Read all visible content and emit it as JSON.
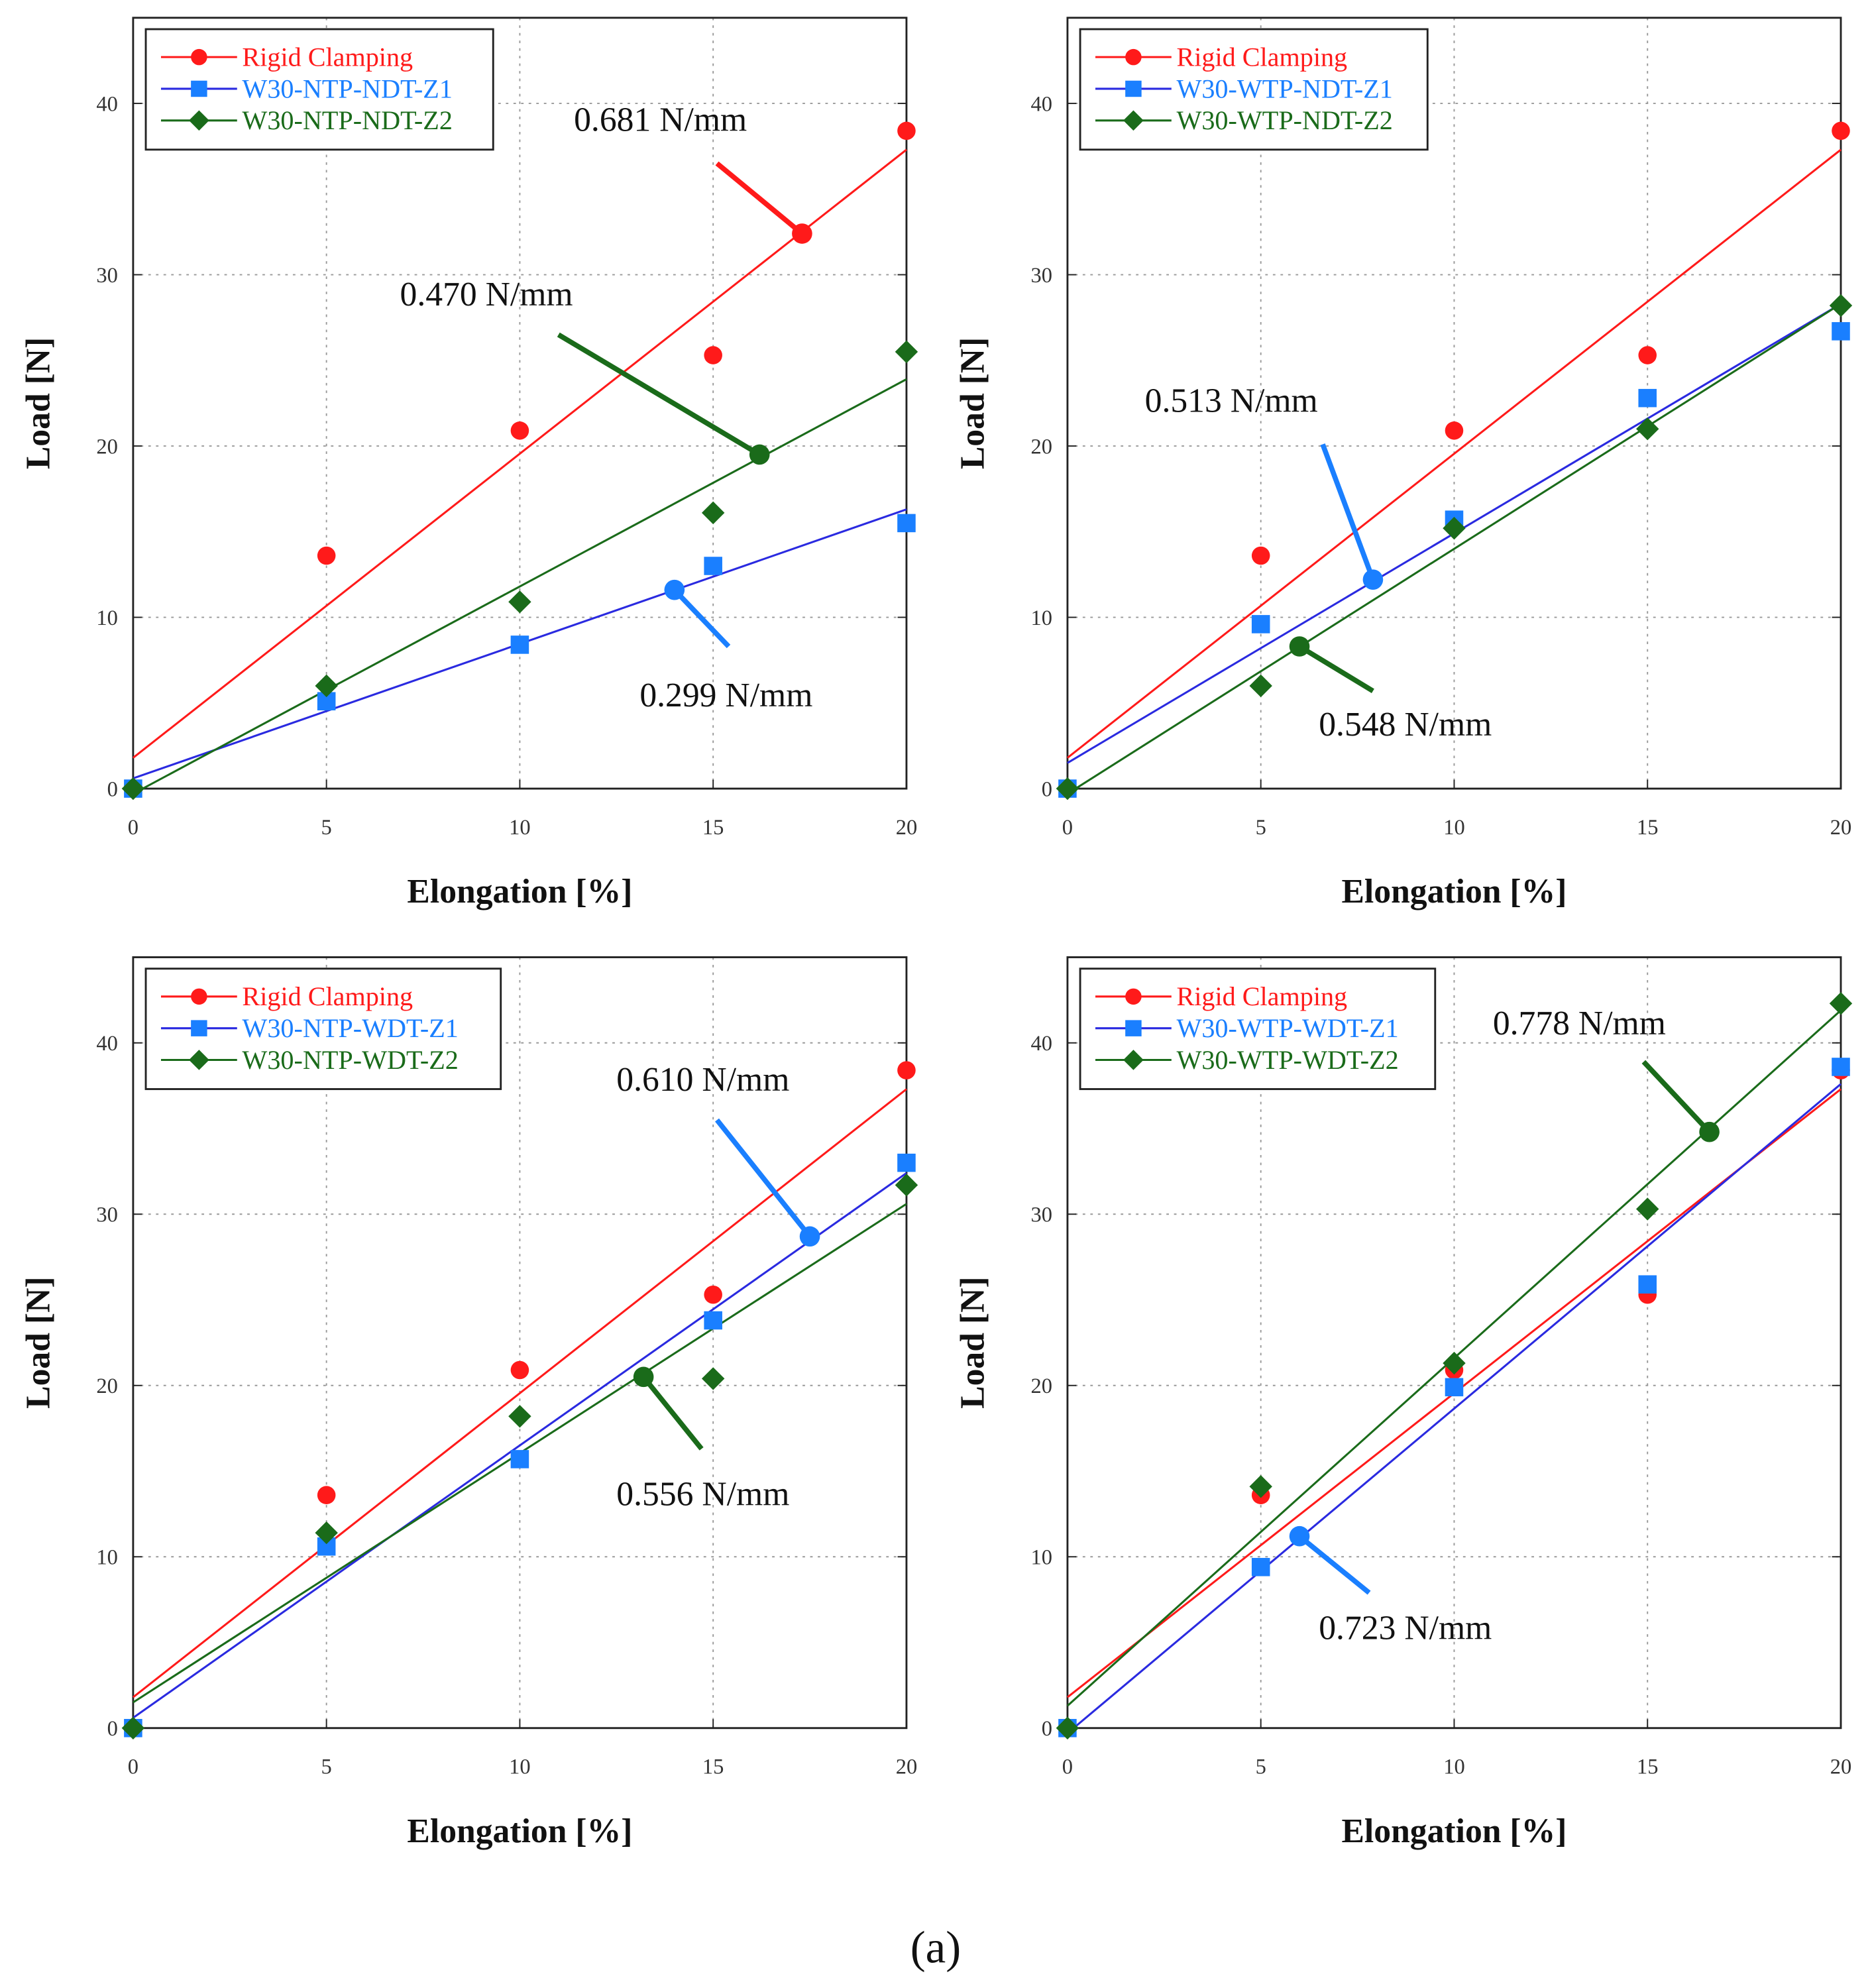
{
  "caption": "(a)",
  "colors": {
    "rigid": "#ff1a1a",
    "z1_marker": "#1a7fff",
    "z1_line": "#2a2ae0",
    "z2": "#1a6b1a"
  },
  "chart_data": [
    {
      "type": "scatter",
      "xlabel": "Elongation [%]",
      "ylabel": "Load [N]",
      "xlim": [
        0,
        20
      ],
      "ylim": [
        0,
        45
      ],
      "xticks": [
        0,
        5,
        10,
        15,
        20
      ],
      "yticks": [
        0,
        10,
        20,
        30,
        40
      ],
      "grid": true,
      "legend": "top-left",
      "x": [
        0,
        5,
        10,
        15,
        20
      ],
      "series": [
        {
          "name": "Rigid Clamping",
          "key": "rigid",
          "marker": "circle",
          "values": [
            0,
            13.6,
            20.9,
            25.3,
            38.4
          ],
          "fit": [
            1.8,
            37.3
          ]
        },
        {
          "name": "W30-NTP-NDT-Z1",
          "key": "z1",
          "marker": "square",
          "values": [
            0,
            5.1,
            8.4,
            13.0,
            15.5
          ],
          "fit": [
            0.6,
            16.3
          ]
        },
        {
          "name": "W30-NTP-NDT-Z2",
          "key": "z2",
          "marker": "diamond",
          "values": [
            0,
            6.0,
            10.9,
            16.1,
            25.5
          ],
          "fit": [
            -0.3,
            23.9
          ]
        }
      ],
      "annotations": [
        {
          "text": "0.681 N/mm",
          "key": "rigid",
          "label": [
            11.4,
            38.4
          ],
          "from": [
            15.1,
            36.5
          ],
          "to": [
            17.3,
            32.4
          ]
        },
        {
          "text": "0.470 N/mm",
          "key": "z2",
          "label": [
            6.9,
            28.2
          ],
          "from": [
            11.0,
            26.5
          ],
          "to": [
            16.2,
            19.5
          ]
        },
        {
          "text": "0.299 N/mm",
          "key": "z1",
          "label": [
            13.1,
            4.8
          ],
          "from": [
            15.4,
            8.3
          ],
          "to": [
            14.0,
            11.6
          ]
        }
      ]
    },
    {
      "type": "scatter",
      "xlabel": "Elongation [%]",
      "ylabel": "Load [N]",
      "xlim": [
        0,
        20
      ],
      "ylim": [
        0,
        45
      ],
      "xticks": [
        0,
        5,
        10,
        15,
        20
      ],
      "yticks": [
        0,
        10,
        20,
        30,
        40
      ],
      "grid": true,
      "legend": "top-left",
      "x": [
        0,
        5,
        10,
        15,
        20
      ],
      "series": [
        {
          "name": "Rigid Clamping",
          "key": "rigid",
          "marker": "circle",
          "values": [
            0,
            13.6,
            20.9,
            25.3,
            38.4
          ],
          "fit": [
            1.8,
            37.3
          ]
        },
        {
          "name": "W30-WTP-NDT-Z1",
          "key": "z1",
          "marker": "square",
          "values": [
            0,
            9.6,
            15.7,
            22.8,
            26.7
          ],
          "fit": [
            1.5,
            28.3
          ]
        },
        {
          "name": "W30-WTP-NDT-Z2",
          "key": "z2",
          "marker": "diamond",
          "values": [
            0,
            6.0,
            15.2,
            21.0,
            28.2
          ],
          "fit": [
            -0.3,
            28.3
          ]
        }
      ],
      "annotations": [
        {
          "text": "0.513 N/mm",
          "key": "z1",
          "label": [
            2.0,
            22.0
          ],
          "from": [
            6.6,
            20.1
          ],
          "to": [
            7.9,
            12.2
          ]
        },
        {
          "text": "0.548 N/mm",
          "key": "z2",
          "label": [
            6.5,
            3.1
          ],
          "from": [
            7.9,
            5.7
          ],
          "to": [
            6.0,
            8.3
          ]
        }
      ]
    },
    {
      "type": "scatter",
      "xlabel": "Elongation [%]",
      "ylabel": "Load [N]",
      "xlim": [
        0,
        20
      ],
      "ylim": [
        0,
        45
      ],
      "xticks": [
        0,
        5,
        10,
        15,
        20
      ],
      "yticks": [
        0,
        10,
        20,
        30,
        40
      ],
      "grid": true,
      "legend": "top-left",
      "x": [
        0,
        5,
        10,
        15,
        20
      ],
      "series": [
        {
          "name": "Rigid Clamping",
          "key": "rigid",
          "marker": "circle",
          "values": [
            0,
            13.6,
            20.9,
            25.3,
            38.4
          ],
          "fit": [
            1.8,
            37.3
          ]
        },
        {
          "name": "W30-NTP-WDT-Z1",
          "key": "z1",
          "marker": "square",
          "values": [
            0,
            10.6,
            15.7,
            23.8,
            33.0
          ],
          "fit": [
            0.6,
            32.4
          ]
        },
        {
          "name": "W30-NTP-WDT-Z2",
          "key": "z2",
          "marker": "diamond",
          "values": [
            0,
            11.4,
            18.2,
            20.4,
            31.7
          ],
          "fit": [
            1.5,
            30.6
          ]
        }
      ],
      "annotations": [
        {
          "text": "0.610 N/mm",
          "key": "z1",
          "label": [
            12.5,
            37.2
          ],
          "from": [
            15.1,
            35.5
          ],
          "to": [
            17.5,
            28.7
          ]
        },
        {
          "text": "0.556 N/mm",
          "key": "z2",
          "label": [
            12.5,
            13.0
          ],
          "from": [
            14.7,
            16.3
          ],
          "to": [
            13.2,
            20.5
          ]
        }
      ]
    },
    {
      "type": "scatter",
      "xlabel": "Elongation [%]",
      "ylabel": "Load [N]",
      "xlim": [
        0,
        20
      ],
      "ylim": [
        0,
        45
      ],
      "xticks": [
        0,
        5,
        10,
        15,
        20
      ],
      "yticks": [
        0,
        10,
        20,
        30,
        40
      ],
      "grid": true,
      "legend": "top-left",
      "x": [
        0,
        5,
        10,
        15,
        20
      ],
      "series": [
        {
          "name": "Rigid Clamping",
          "key": "rigid",
          "marker": "circle",
          "values": [
            0,
            13.6,
            20.9,
            25.3,
            38.4
          ],
          "fit": [
            1.8,
            37.3
          ]
        },
        {
          "name": "W30-WTP-WDT-Z1",
          "key": "z1",
          "marker": "square",
          "values": [
            0,
            9.4,
            19.9,
            25.9,
            38.6
          ],
          "fit": [
            -0.3,
            37.6
          ]
        },
        {
          "name": "W30-WTP-WDT-Z2",
          "key": "z2",
          "marker": "diamond",
          "values": [
            0,
            14.1,
            21.3,
            30.3,
            42.3
          ],
          "fit": [
            1.3,
            41.9
          ]
        }
      ],
      "annotations": [
        {
          "text": "0.778 N/mm",
          "key": "z2",
          "label": [
            11.0,
            40.5
          ],
          "from": [
            14.9,
            38.9
          ],
          "to": [
            16.6,
            34.8
          ]
        },
        {
          "text": "0.723 N/mm",
          "key": "z1",
          "label": [
            6.5,
            5.2
          ],
          "from": [
            7.8,
            7.9
          ],
          "to": [
            6.0,
            11.2
          ]
        }
      ]
    }
  ]
}
